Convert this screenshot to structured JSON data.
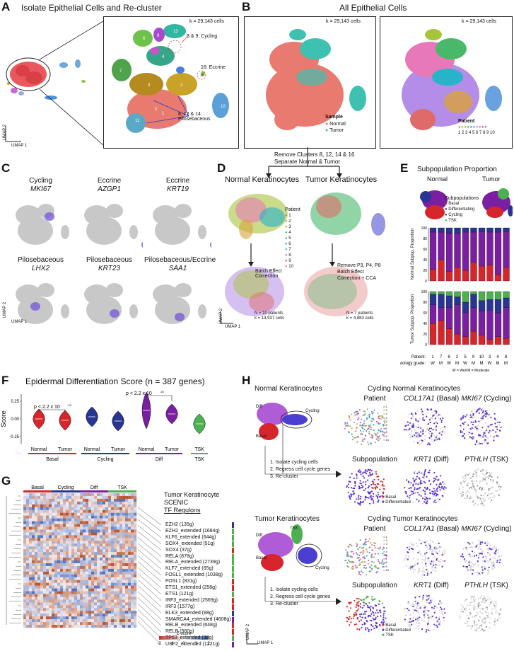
{
  "figure": {
    "panel_letters": [
      "A",
      "B",
      "C",
      "D",
      "E",
      "F",
      "G",
      "H"
    ],
    "A": {
      "title": "Isolate Epithelial Cells and Re-cluster",
      "k": "k = 29,143 cells",
      "ann_cycling": "5 & 9: Cycling",
      "ann_eccrine": "16: Eccrine",
      "ann_pilo": "8, 12 & 14: Pilosebaceous",
      "umap1": "UMAP 1",
      "umap2": "UMAP 2",
      "cluster_numbers": [
        "0",
        "1",
        "2",
        "3",
        "4",
        "5",
        "6",
        "7",
        "8",
        "9",
        "10",
        "11",
        "12",
        "13",
        "14",
        "15",
        "16"
      ]
    },
    "B": {
      "title": "All Epithelial Cells",
      "k": "k = 29,143 cells",
      "sample_legend_title": "Sample",
      "sample_normal": "Normal",
      "sample_tumor": "Tumor",
      "patient_legend_title": "Patient",
      "patient_numbers": "1 2 3 4 5 6 7 8 9 10",
      "step1": "Remove Clusters 8, 12, 14 & 16",
      "step2": "Separate Normal & Tumor"
    },
    "C": {
      "titles": [
        "Cycling",
        "Eccrine",
        "Eccrine",
        "Pilosebaceous",
        "Pilosebaceous",
        "Pilosebaceous/Eccrine"
      ],
      "genes": [
        "MKI67",
        "AZGP1",
        "KRT19",
        "LHX2",
        "KRT23",
        "SAA1"
      ],
      "umap1": "UMAP 1",
      "umap2": "UMAP 2"
    },
    "D": {
      "normal_title": "Normal Keratinocytes",
      "tumor_title": "Tumor Keratinocytes",
      "patient_legend_title": "Patient",
      "patients": [
        "1",
        "2",
        "3",
        "4",
        "5",
        "6",
        "7",
        "8",
        "9",
        "10"
      ],
      "batch_normal": "Batch Effect Correction",
      "batch_tumor_1": "Remove P3, P4, P8",
      "batch_tumor_2": "Batch Effect",
      "batch_tumor_3": "Correction + CCA",
      "normal_n": "N = 10 patients",
      "normal_k": "k = 13,937 cells",
      "tumor_n": "N = 7 patients",
      "tumor_k": "k = 4,883 cells",
      "umap1": "UMAP 1",
      "umap2": "UMAP 2"
    },
    "E": {
      "title": "Subpopulation Proportion",
      "normal": "Normal",
      "tumor": "Tumor",
      "legend_title": "Subpopulations",
      "legend": [
        "Basal",
        "Differentiating",
        "Cycling",
        "TSK"
      ],
      "normal_ylabel": "Normal Subpop. Proportion",
      "tumor_ylabel": "Tumor Subpop. Proportion",
      "patient_label": "Patient:",
      "patients": [
        "1",
        "7",
        "6",
        "2",
        "5",
        "9",
        "10",
        "3",
        "4",
        "8"
      ],
      "grade_label": "Histology grade:",
      "grades": [
        "W",
        "M",
        "W",
        "M",
        "W",
        "M",
        "M",
        "W",
        "M",
        "M"
      ],
      "grade_key": "W = Well     M = Moderate",
      "yticks": [
        "0",
        "20",
        "40",
        "60",
        "80",
        "100"
      ]
    },
    "F": {
      "title": "Epidermal Differentiation Score (n = 387 genes)",
      "ylabel": "Score",
      "yticks": [
        "0.25",
        "0.00",
        "-0.25"
      ],
      "pval1": "p < 2.2 x 10",
      "pval2": "p < 2.2 x 10",
      "pexp": "-16",
      "xlabels": [
        "Normal",
        "Tumor",
        "Normal",
        "Tumor",
        "Normal",
        "Tumor",
        "TSK"
      ],
      "groups": [
        "Basal",
        "Cycling",
        "Diff",
        "TSK"
      ]
    },
    "G": {
      "col_groups": [
        "Basal",
        "Cycling",
        "Diff",
        "TSK"
      ],
      "title1": "Tumor Keratinocyte",
      "title2": "SCENIC",
      "title3": "TF Regulons",
      "regulons": [
        "EZH2 (135g)",
        "EZH2_extended (1684g)",
        "KLF6_extended (644g)",
        "SOX4_extended (51g)",
        "SOX4 (37g)",
        "RELA (878g)",
        "RELA_extended (2739g)",
        "KLF7_extended (65g)",
        "FOSL1_extended (1038g)",
        "FOSL1 (831g)",
        "ETS1_extended (258g)",
        "ETS1 (121g)",
        "IRF3_extended (2569g)",
        "IRF3 (1577g)",
        "ELK3_extended (88g)",
        "SMARCA4_extended (4608g)",
        "RELB_extended (648g)",
        "RELB (560g)",
        "TP63_extended (38g)",
        "USF2_extended (1221g)"
      ],
      "zscore": "Z-score",
      "zticks": [
        "-2",
        "-1",
        "0",
        "1",
        "2"
      ]
    },
    "H": {
      "normal_title": "Normal Keratinocytes",
      "normal_cycling_title": "Cycling Normal Keratinocytes",
      "tumor_title": "Tumor Keratinocytes",
      "tumor_cycling_title": "Cycling Tumor Keratinocytes",
      "diff": "Diff",
      "cycling": "Cycling",
      "basal": "Basal",
      "tsk": "TSK",
      "steps": [
        "1. Isolate cycling cells",
        "2. Regress cell cycle genes",
        "3. Re-cluster"
      ],
      "patient": "Patient",
      "subpopulation": "Subpopulation",
      "col17_gene": "COL17A1",
      "col17_tag": " (Basal)",
      "mki_gene": "MKI67",
      "mki_tag": " (Cycling)",
      "krt1_gene": "KRT1",
      "krt1_tag": " (Diff)",
      "pthlh_gene": "PTHLH",
      "pthlh_tag": " (TSK)",
      "legend_normal": [
        "Basal",
        "Differentiated"
      ],
      "legend_tumor": [
        "Basal",
        "Differentiated",
        "TSK"
      ],
      "patients": [
        "1",
        "2",
        "3",
        "4",
        "5",
        "6",
        "7",
        "8",
        "9",
        "10"
      ],
      "umap1": "UMAP 1",
      "umap2": "UMAP 2"
    }
  },
  "chart_data": [
    {
      "type": "bar",
      "title": "Normal Subpop. Proportion",
      "categories": [
        "1",
        "7",
        "6",
        "2",
        "5",
        "9",
        "10",
        "3",
        "4",
        "8"
      ],
      "ylim": [
        0,
        100
      ],
      "series": [
        {
          "name": "Basal",
          "color": "#d7262b",
          "values": [
            22,
            40,
            18,
            25,
            20,
            35,
            28,
            30,
            12,
            25
          ]
        },
        {
          "name": "Differentiating",
          "color": "#7b1fa2",
          "values": [
            70,
            52,
            72,
            65,
            72,
            57,
            65,
            62,
            80,
            68
          ]
        },
        {
          "name": "Cycling",
          "color": "#283593",
          "values": [
            8,
            8,
            10,
            10,
            8,
            8,
            7,
            8,
            8,
            7
          ]
        }
      ]
    },
    {
      "type": "bar",
      "title": "Tumor Subpop. Proportion",
      "categories": [
        "1",
        "7",
        "6",
        "2",
        "5",
        "9",
        "10",
        "3",
        "4",
        "8"
      ],
      "ylim": [
        0,
        100
      ],
      "series": [
        {
          "name": "Basal",
          "color": "#d7262b",
          "values": [
            40,
            45,
            30,
            20,
            15,
            25,
            18,
            10,
            15,
            12
          ]
        },
        {
          "name": "Differentiating",
          "color": "#7b1fa2",
          "values": [
            35,
            25,
            40,
            55,
            45,
            45,
            45,
            55,
            45,
            58
          ]
        },
        {
          "name": "Cycling",
          "color": "#283593",
          "values": [
            20,
            25,
            22,
            15,
            20,
            25,
            20,
            20,
            25,
            18
          ]
        },
        {
          "name": "TSK",
          "color": "#4caf50",
          "values": [
            5,
            5,
            8,
            10,
            20,
            5,
            17,
            15,
            15,
            12
          ]
        }
      ]
    },
    {
      "type": "violin",
      "title": "Epidermal Differentiation Score (n = 387 genes)",
      "ylabel": "Score",
      "ylim": [
        -0.35,
        0.35
      ],
      "categories": [
        "Basal Normal",
        "Basal Tumor",
        "Cycling Normal",
        "Cycling Tumor",
        "Diff Normal",
        "Diff Tumor",
        "TSK"
      ],
      "medians": [
        0.0,
        -0.02,
        0.03,
        -0.03,
        0.12,
        0.07,
        -0.07
      ],
      "colors": [
        "#d7262b",
        "#d7262b",
        "#283593",
        "#283593",
        "#7b1fa2",
        "#7b1fa2",
        "#4caf50"
      ]
    }
  ]
}
